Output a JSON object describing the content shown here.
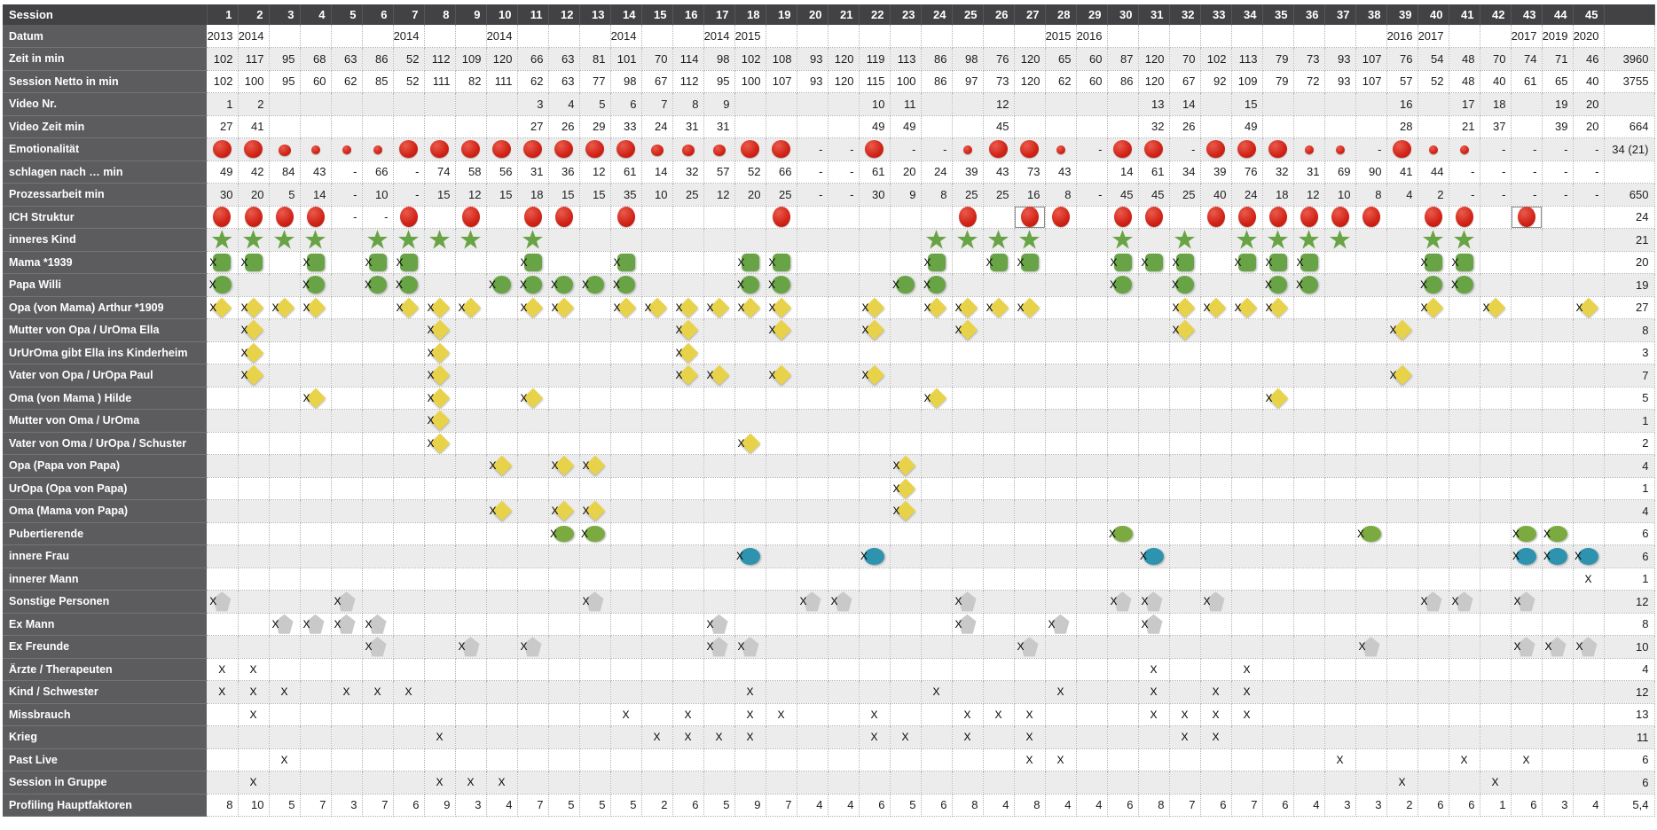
{
  "table": {
    "corner_label": "Session",
    "sessions": [
      "1",
      "2",
      "3",
      "4",
      "5",
      "6",
      "7",
      "8",
      "9",
      "10",
      "11",
      "12",
      "13",
      "14",
      "15",
      "16",
      "17",
      "18",
      "19",
      "20",
      "21",
      "22",
      "23",
      "24",
      "25",
      "26",
      "27",
      "28",
      "29",
      "30",
      "31",
      "32",
      "33",
      "34",
      "35",
      "36",
      "37",
      "38",
      "39",
      "40",
      "41",
      "42",
      "43",
      "44",
      "45"
    ],
    "total_header": "",
    "colors": {
      "header_bg": "#424244",
      "label_bg": "#5c5c5e",
      "row_alt_bg": "#ececec",
      "red_dot": "#d02317",
      "green": "#68a345",
      "light_green_oval": "#7bab40",
      "teal_oval": "#2e93ae",
      "yellow_diamond": "#e8d24a",
      "gray_pentagon": "#c9c9c9"
    },
    "rows": [
      {
        "key": "datum",
        "label": "Datum",
        "type": "text",
        "total": "",
        "values": [
          "2013",
          "2014",
          "",
          "",
          "",
          "",
          "2014",
          "",
          "",
          "2014",
          "",
          "",
          "",
          "2014",
          "",
          "",
          "2014",
          "2015",
          "",
          "",
          "",
          "",
          "",
          "",
          "",
          "",
          "",
          "2015",
          "2016",
          "",
          "",
          "",
          "",
          "",
          "",
          "",
          "",
          "",
          "2016",
          "2017",
          "",
          "",
          "2017",
          "2019",
          "2020"
        ]
      },
      {
        "key": "zeit",
        "label": "Zeit in min",
        "type": "text",
        "total": "3960",
        "values": [
          "102",
          "117",
          "95",
          "68",
          "63",
          "86",
          "52",
          "112",
          "109",
          "120",
          "66",
          "63",
          "81",
          "101",
          "70",
          "114",
          "98",
          "102",
          "108",
          "93",
          "120",
          "119",
          "113",
          "86",
          "98",
          "76",
          "120",
          "65",
          "60",
          "87",
          "120",
          "70",
          "102",
          "113",
          "79",
          "73",
          "93",
          "107",
          "76",
          "54",
          "48",
          "70",
          "74",
          "71",
          "46"
        ]
      },
      {
        "key": "netto",
        "label": "Session Netto in min",
        "type": "text",
        "total": "3755",
        "values": [
          "102",
          "100",
          "95",
          "60",
          "62",
          "85",
          "52",
          "111",
          "82",
          "111",
          "62",
          "63",
          "77",
          "98",
          "67",
          "112",
          "95",
          "100",
          "107",
          "93",
          "120",
          "115",
          "100",
          "86",
          "97",
          "73",
          "120",
          "62",
          "60",
          "86",
          "120",
          "67",
          "92",
          "109",
          "79",
          "72",
          "93",
          "107",
          "57",
          "52",
          "48",
          "40",
          "61",
          "65",
          "40"
        ]
      },
      {
        "key": "videonr",
        "label": "Video Nr.",
        "type": "text",
        "total": "",
        "values": [
          "1",
          "2",
          "",
          "",
          "",
          "",
          "",
          "",
          "",
          "",
          "3",
          "4",
          "5",
          "6",
          "7",
          "8",
          "9",
          "",
          "",
          "",
          "",
          "10",
          "11",
          "",
          "",
          "12",
          "",
          "",
          "",
          "",
          "13",
          "14",
          "",
          "15",
          "",
          "",
          "",
          "",
          "16",
          "",
          "17",
          "18",
          "",
          "19",
          "20"
        ]
      },
      {
        "key": "videozeit",
        "label": "Video Zeit min",
        "type": "text",
        "total": "664",
        "values": [
          "27",
          "41",
          "",
          "",
          "",
          "",
          "",
          "",
          "",
          "",
          "27",
          "26",
          "29",
          "33",
          "24",
          "31",
          "31",
          "",
          "",
          "",
          "",
          "49",
          "49",
          "",
          "",
          "45",
          "",
          "",
          "",
          "",
          "32",
          "26",
          "",
          "49",
          "",
          "",
          "",
          "",
          "28",
          "",
          "21",
          "37",
          "",
          "39",
          "20"
        ]
      },
      {
        "key": "emotion",
        "label": "Emotionalität",
        "type": "emo",
        "total": "34 (21)",
        "values": [
          "L",
          "L",
          "M",
          "S",
          "S",
          "S",
          "L",
          "L",
          "L",
          "L",
          "L",
          "L",
          "L",
          "L",
          "M",
          "M",
          "M",
          "L",
          "L",
          "-",
          "-",
          "L",
          "-",
          "-",
          "S",
          "L",
          "L",
          "S",
          "-",
          "L",
          "L",
          "-",
          "L",
          "L",
          "L",
          "S",
          "S",
          "-",
          "L",
          "S",
          "S",
          "-",
          "-",
          "-",
          "-"
        ]
      },
      {
        "key": "schlagen",
        "label": "schlagen nach … min",
        "type": "text",
        "total": "",
        "values": [
          "49",
          "42",
          "84",
          "43",
          "-",
          "66",
          "-",
          "74",
          "58",
          "56",
          "31",
          "36",
          "12",
          "61",
          "14",
          "32",
          "57",
          "52",
          "66",
          "-",
          "-",
          "61",
          "20",
          "24",
          "39",
          "43",
          "73",
          "43",
          "",
          "14",
          "61",
          "34",
          "39",
          "76",
          "32",
          "31",
          "69",
          "90",
          "41",
          "44",
          "-",
          "-",
          "-",
          "-",
          "-"
        ]
      },
      {
        "key": "prozess",
        "label": "Prozessarbeit min",
        "type": "text",
        "total": "650",
        "values": [
          "30",
          "20",
          "5",
          "14",
          "-",
          "10",
          "-",
          "15",
          "12",
          "15",
          "18",
          "15",
          "15",
          "35",
          "10",
          "25",
          "12",
          "20",
          "25",
          "-",
          "-",
          "30",
          "9",
          "8",
          "25",
          "25",
          "16",
          "8",
          "-",
          "45",
          "45",
          "25",
          "40",
          "24",
          "18",
          "12",
          "10",
          "8",
          "4",
          "2",
          "-",
          "-",
          "-",
          "-",
          "-"
        ]
      },
      {
        "key": "ich",
        "label": "ICH Struktur",
        "type": "ich",
        "total": "24",
        "cols": [
          1,
          2,
          3,
          4,
          7,
          9,
          11,
          12,
          14,
          19,
          25,
          27,
          28,
          30,
          31,
          33,
          34,
          35,
          36,
          37,
          38,
          40,
          41,
          43
        ],
        "dashes": [
          5,
          6
        ],
        "selected": [
          27,
          43
        ]
      },
      {
        "key": "kind",
        "label": "inneres Kind",
        "type": "star",
        "total": "21",
        "cols": [
          1,
          2,
          3,
          4,
          6,
          7,
          8,
          9,
          11,
          24,
          25,
          26,
          27,
          30,
          32,
          34,
          35,
          36,
          37,
          40,
          41
        ]
      },
      {
        "key": "mama",
        "label": "Mama  *1939",
        "type": "sq",
        "total": "20",
        "cols": [
          1,
          2,
          4,
          6,
          7,
          11,
          14,
          18,
          19,
          24,
          26,
          27,
          30,
          31,
          32,
          34,
          35,
          36,
          40,
          41
        ]
      },
      {
        "key": "papa",
        "label": "Papa Willi",
        "type": "circ",
        "total": "19",
        "cols": [
          1,
          4,
          6,
          7,
          10,
          11,
          12,
          13,
          14,
          18,
          19,
          23,
          24,
          30,
          32,
          35,
          36,
          40,
          41
        ]
      },
      {
        "key": "opa_mama",
        "label": "Opa (von Mama) Arthur *1909",
        "type": "dia",
        "total": "27",
        "cols": [
          1,
          2,
          3,
          4,
          7,
          8,
          9,
          11,
          12,
          14,
          15,
          16,
          17,
          18,
          19,
          22,
          24,
          25,
          26,
          27,
          32,
          33,
          34,
          35,
          40,
          42,
          45
        ]
      },
      {
        "key": "mutter_opa",
        "label": "Mutter von Opa /  UrOma Ella",
        "type": "dia",
        "total": "8",
        "cols": [
          2,
          8,
          16,
          19,
          22,
          25,
          32,
          39
        ]
      },
      {
        "key": "ururoma",
        "label": "UrUrOma gibt Ella ins Kinderheim",
        "type": "dia",
        "total": "3",
        "cols": [
          2,
          8,
          16
        ]
      },
      {
        "key": "vater_opa",
        "label": "Vater von Opa / UrOpa Paul",
        "type": "dia",
        "total": "7",
        "cols": [
          2,
          8,
          16,
          17,
          19,
          22,
          39
        ]
      },
      {
        "key": "oma_hilde",
        "label": "Oma (von Mama ) Hilde",
        "type": "dia",
        "total": "5",
        "cols": [
          4,
          8,
          11,
          24,
          35
        ]
      },
      {
        "key": "mutter_oma",
        "label": "Mutter von Oma / UrOma",
        "type": "dia",
        "total": "1",
        "cols": [
          8
        ]
      },
      {
        "key": "vater_oma",
        "label": "Vater von Oma / UrOpa / Schuster",
        "type": "dia",
        "total": "2",
        "cols": [
          8,
          18
        ]
      },
      {
        "key": "opa_papa",
        "label": "Opa (Papa von Papa)",
        "type": "dia",
        "total": "4",
        "cols": [
          10,
          12,
          13,
          23
        ]
      },
      {
        "key": "uropa_papa",
        "label": "UrOpa (Opa von Papa)",
        "type": "dia",
        "total": "1",
        "cols": [
          23
        ]
      },
      {
        "key": "oma_papa",
        "label": "Oma (Mama von Papa)",
        "type": "dia",
        "total": "4",
        "cols": [
          10,
          12,
          13,
          23
        ]
      },
      {
        "key": "pubertierende",
        "label": "Pubertierende",
        "type": "og",
        "total": "6",
        "cols": [
          12,
          13,
          30,
          38,
          43,
          44
        ]
      },
      {
        "key": "innere_frau",
        "label": "innere Frau",
        "type": "ob",
        "total": "6",
        "cols": [
          18,
          22,
          31,
          43,
          44,
          45
        ]
      },
      {
        "key": "innerer_mann",
        "label": "innerer Mann",
        "type": "x",
        "total": "1",
        "cols": [
          45
        ]
      },
      {
        "key": "sonstige",
        "label": "Sonstige Personen",
        "type": "pent",
        "total": "12",
        "cols": [
          1,
          5,
          13,
          20,
          21,
          25,
          30,
          31,
          33,
          40,
          41,
          43
        ]
      },
      {
        "key": "ex_mann",
        "label": "Ex Mann",
        "type": "pent",
        "total": "8",
        "cols": [
          3,
          4,
          5,
          6,
          17,
          25,
          28,
          31
        ]
      },
      {
        "key": "ex_freunde",
        "label": "Ex Freunde",
        "type": "pent",
        "total": "10",
        "cols": [
          6,
          9,
          11,
          17,
          18,
          27,
          38,
          43,
          44,
          45
        ]
      },
      {
        "key": "aerzte",
        "label": "Ärzte / Therapeuten",
        "type": "x",
        "total": "4",
        "cols": [
          1,
          2,
          31,
          34
        ]
      },
      {
        "key": "kind_schwester",
        "label": "Kind / Schwester",
        "type": "x",
        "total": "12",
        "cols": [
          1,
          2,
          3,
          5,
          6,
          7,
          18,
          24,
          28,
          31,
          33,
          34
        ]
      },
      {
        "key": "missbrauch",
        "label": "Missbrauch",
        "type": "x",
        "total": "13",
        "cols": [
          2,
          14,
          16,
          18,
          19,
          22,
          25,
          26,
          27,
          31,
          32,
          33,
          34
        ]
      },
      {
        "key": "krieg",
        "label": "Krieg",
        "type": "x",
        "total": "11",
        "cols": [
          8,
          15,
          16,
          17,
          18,
          22,
          23,
          25,
          27,
          32,
          33
        ]
      },
      {
        "key": "past_live",
        "label": "Past Live",
        "type": "x",
        "total": "6",
        "cols": [
          3,
          27,
          28,
          37,
          41,
          43
        ]
      },
      {
        "key": "gruppe",
        "label": "Session in Gruppe",
        "type": "x",
        "total": "6",
        "cols": [
          2,
          8,
          9,
          10,
          39,
          42
        ]
      },
      {
        "key": "profiling",
        "label": "Profiling Hauptfaktoren",
        "type": "text",
        "total": "5,4",
        "values": [
          "8",
          "10",
          "5",
          "7",
          "3",
          "7",
          "6",
          "9",
          "3",
          "4",
          "7",
          "5",
          "5",
          "5",
          "2",
          "6",
          "5",
          "9",
          "7",
          "4",
          "4",
          "6",
          "5",
          "6",
          "8",
          "4",
          "8",
          "4",
          "4",
          "6",
          "8",
          "7",
          "6",
          "7",
          "6",
          "4",
          "3",
          "3",
          "2",
          "6",
          "6",
          "1",
          "6",
          "3",
          "4"
        ]
      }
    ]
  }
}
